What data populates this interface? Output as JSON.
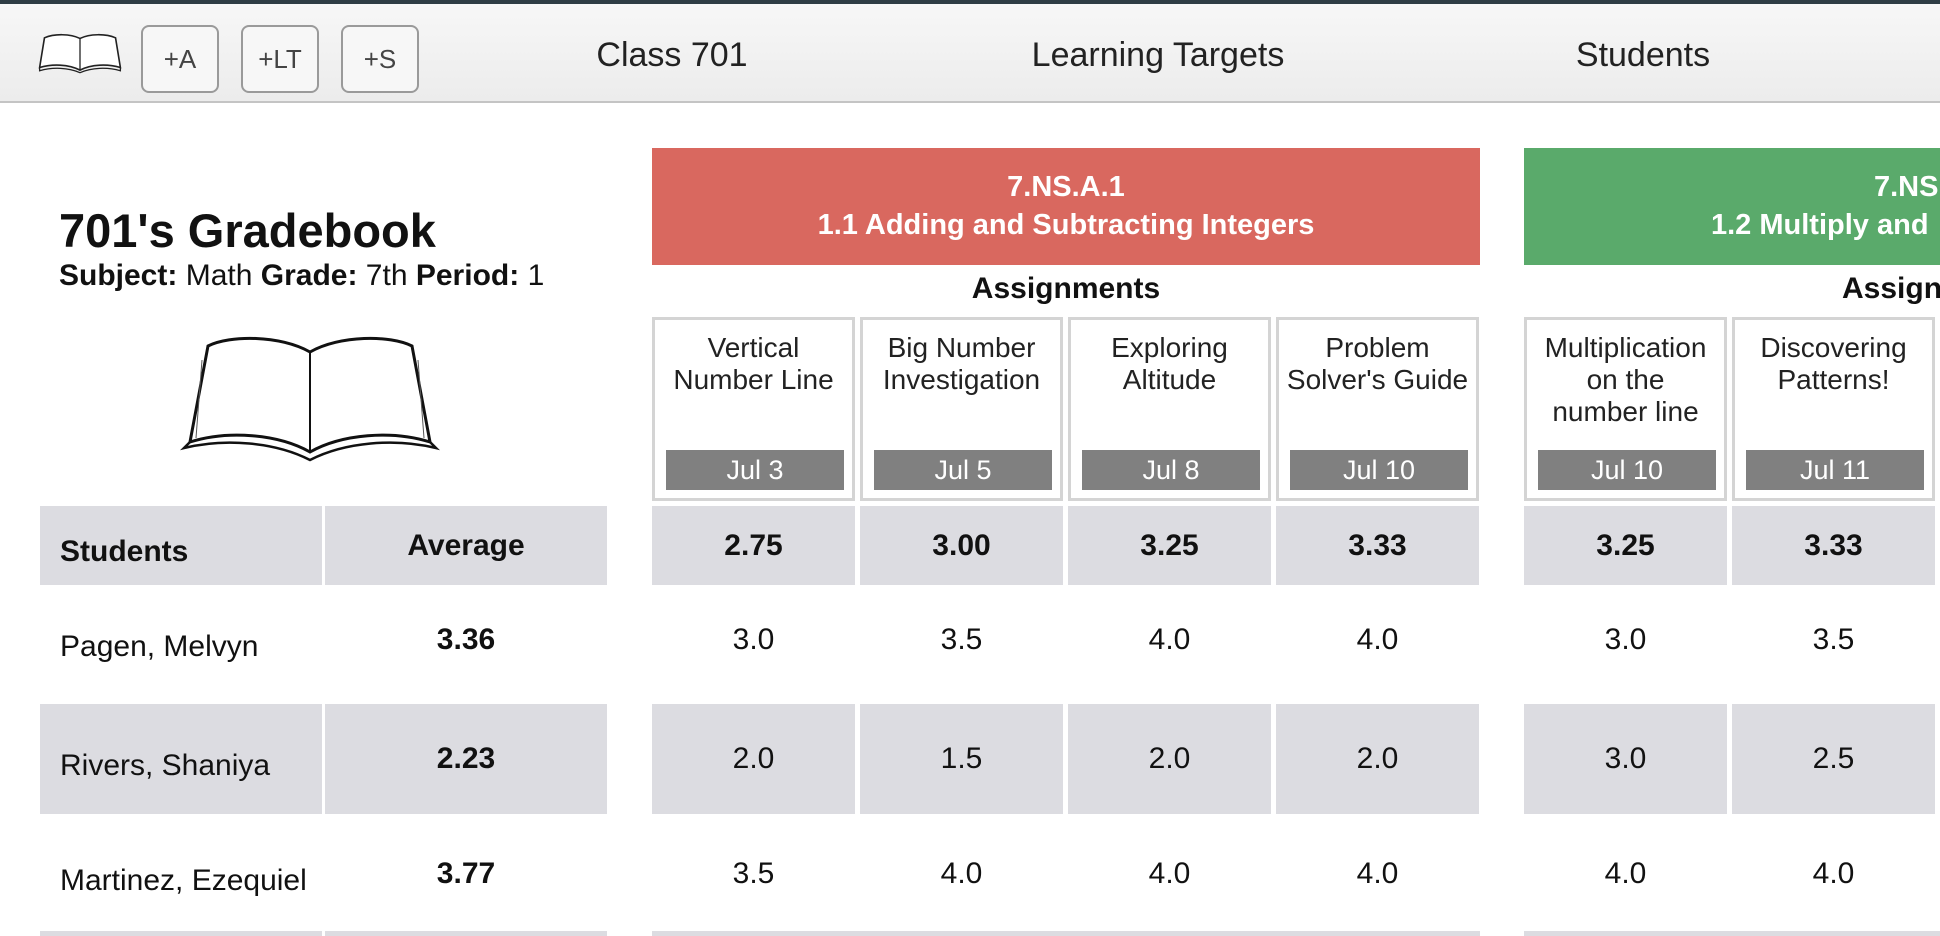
{
  "toolbar": {
    "buttons": [
      "+A",
      "+LT",
      "+S"
    ],
    "nav": [
      "Class 701",
      "Learning Targets",
      "Students"
    ]
  },
  "gradebook": {
    "title": "701's Gradebook",
    "info": [
      {
        "label": "Subject:",
        "value": "Math"
      },
      {
        "label": "Grade:",
        "value": "7th"
      },
      {
        "label": "Period:",
        "value": "1"
      }
    ]
  },
  "table": {
    "headers": [
      "Students",
      "Average"
    ],
    "rows": [
      {
        "name": "Pagen, Melvyn",
        "average": "3.36",
        "scores": [
          [
            "3.0",
            "3.5",
            "4.0",
            "4.0"
          ],
          [
            "3.0",
            "3.5"
          ]
        ]
      },
      {
        "name": "Rivers, Shaniya",
        "average": "2.23",
        "scores": [
          [
            "2.0",
            "1.5",
            "2.0",
            "2.0"
          ],
          [
            "3.0",
            "2.5"
          ]
        ]
      },
      {
        "name": "Martinez, Ezequiel",
        "average": "3.77",
        "scores": [
          [
            "3.5",
            "4.0",
            "4.0",
            "4.0"
          ],
          [
            "4.0",
            "4.0"
          ]
        ]
      }
    ]
  },
  "targets": [
    {
      "code": "7.NS.A.1",
      "title": "1.1 Adding and Subtracting Integers",
      "color": "#d9685f",
      "assignments_label": "Assignments",
      "assignments": [
        {
          "name": [
            "Vertical",
            "Number Line"
          ],
          "date": "Jul 3",
          "average": "2.75"
        },
        {
          "name": [
            "Big Number",
            "Investigation"
          ],
          "date": "Jul 5",
          "average": "3.00"
        },
        {
          "name": [
            "Exploring",
            "Altitude"
          ],
          "date": "Jul 8",
          "average": "3.25"
        },
        {
          "name": [
            "Problem",
            "Solver's Guide"
          ],
          "date": "Jul 10",
          "average": "3.33"
        }
      ]
    },
    {
      "code": "7.NS",
      "title": "1.2 Multiply and",
      "color": "#5aaa6b",
      "assignments_label": "Assign",
      "assignments": [
        {
          "name": [
            "Multiplication",
            "on the",
            "number line"
          ],
          "date": "Jul 10",
          "average": "3.25"
        },
        {
          "name": [
            "Discovering",
            "Patterns!"
          ],
          "date": "Jul 11",
          "average": "3.33"
        }
      ]
    }
  ]
}
